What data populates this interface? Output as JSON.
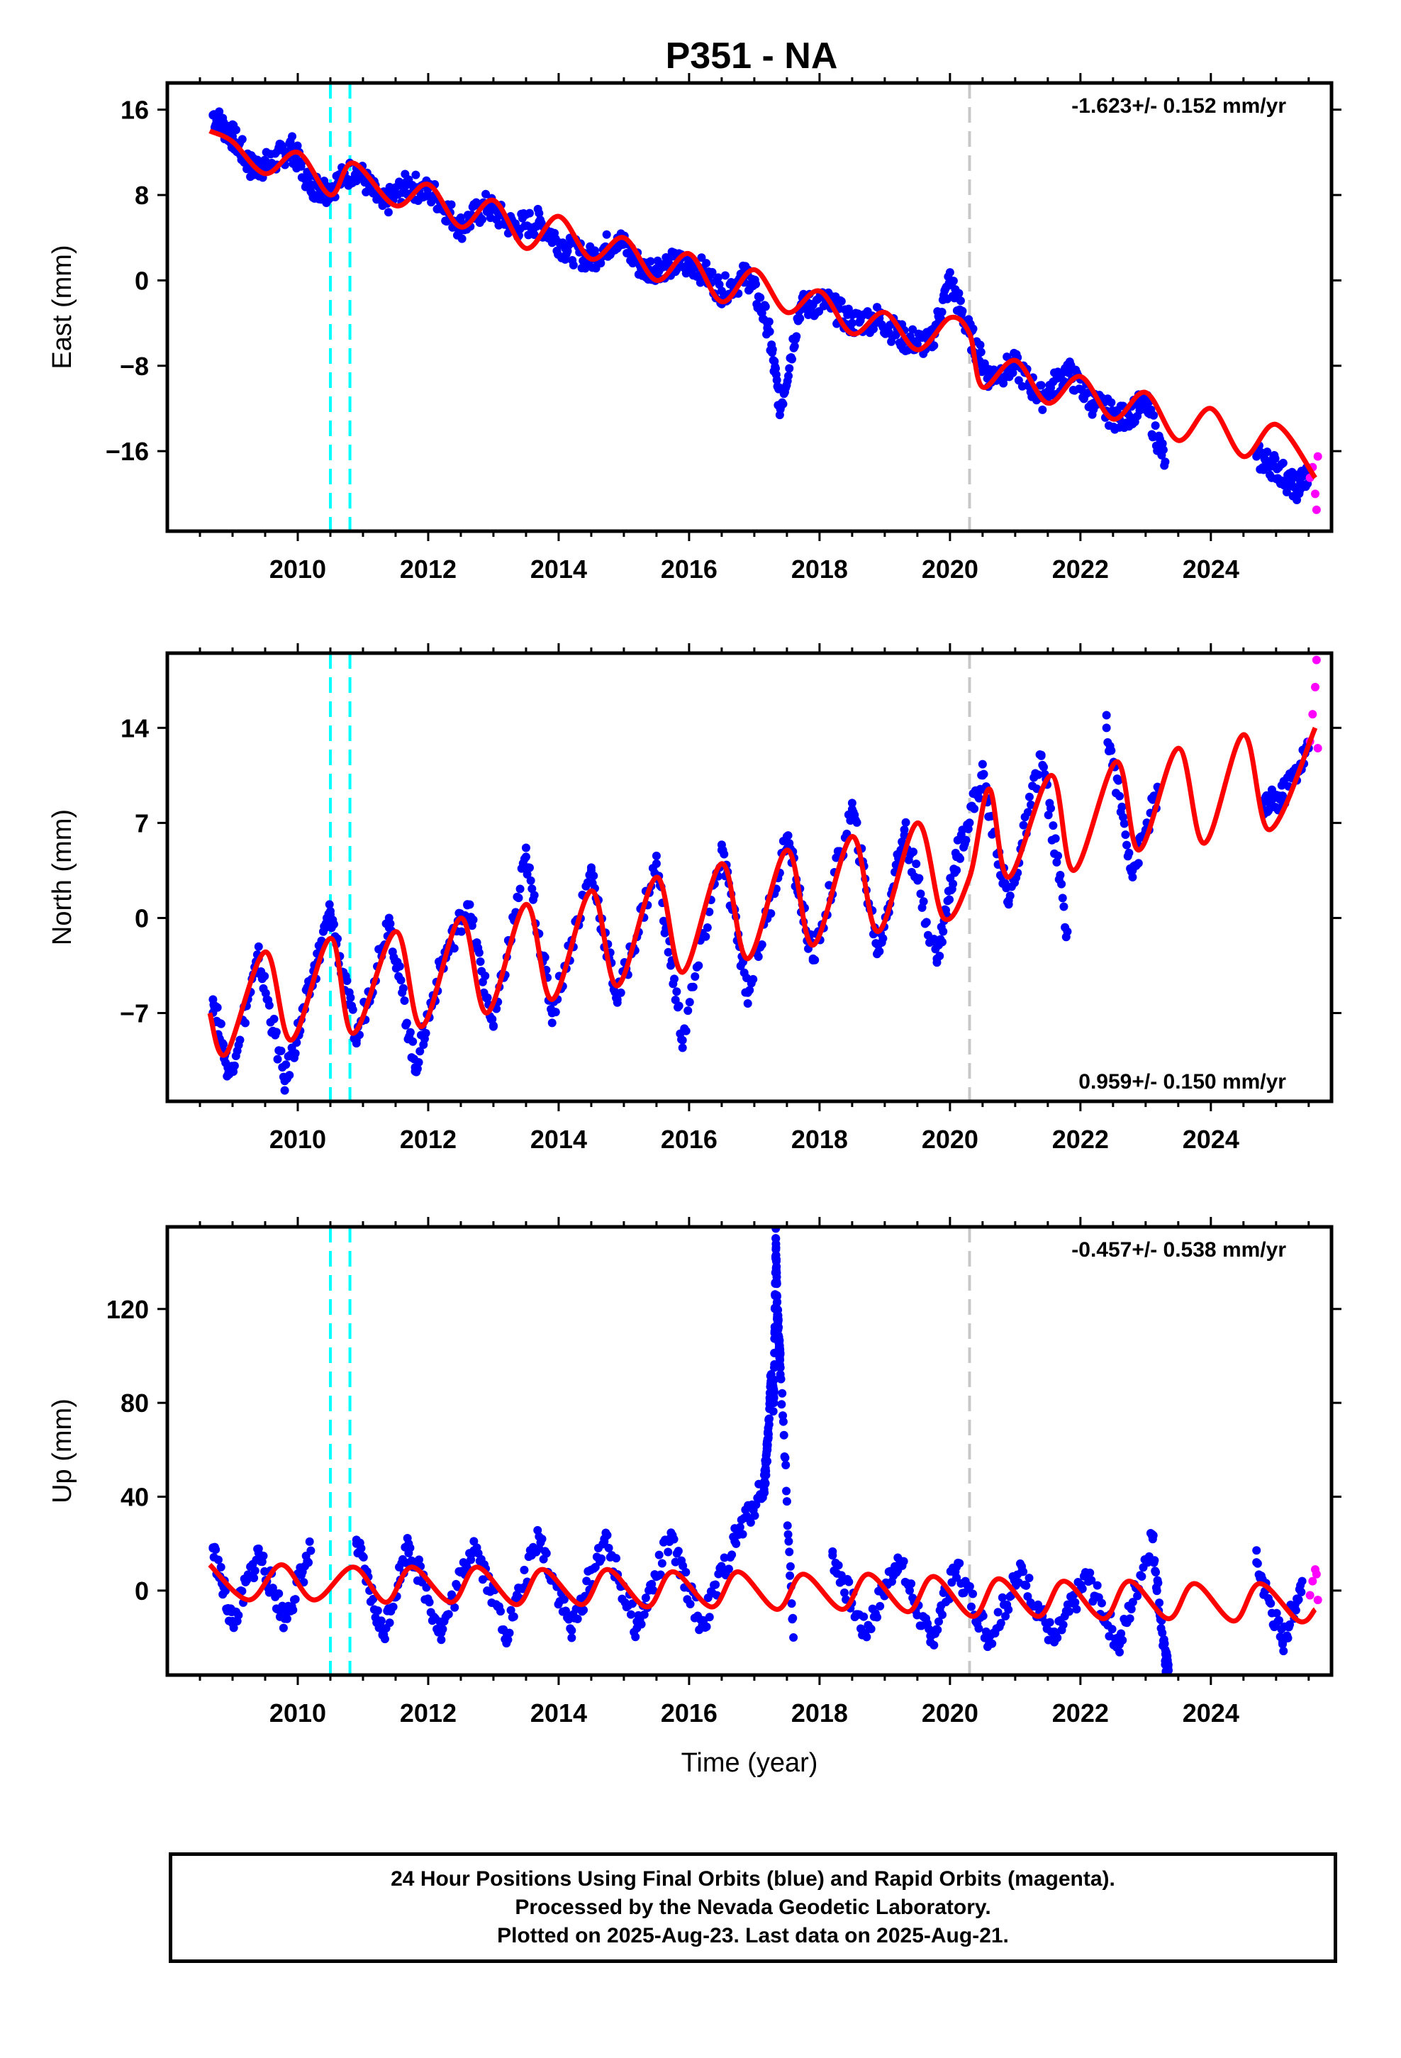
{
  "title": "P351 - NA",
  "colors": {
    "final_orbits": "#0000ff",
    "rapid_orbits": "#ff00ff",
    "model": "#ff0000",
    "equipment_change": "#00ffff",
    "unknown_event": "#c8c8c8",
    "frame": "#000000"
  },
  "footer": {
    "line1": "24 Hour Positions Using Final Orbits (blue) and Rapid Orbits (magenta).",
    "line2": "Processed by the Nevada Geodetic Laboratory.",
    "line3": "Plotted on 2025-Aug-23. Last data on 2025-Aug-21."
  },
  "chart_data": [
    {
      "type": "scatter",
      "component": "east",
      "ylabel": "East (mm)",
      "xlim": [
        2008.0,
        2025.85
      ],
      "ylim": [
        -23.5,
        18.5
      ],
      "x_ticks": [
        2010,
        2012,
        2014,
        2016,
        2018,
        2020,
        2022,
        2024
      ],
      "x_tick_labels": [
        "2010",
        "2012",
        "2014",
        "2016",
        "2018",
        "2020",
        "2022",
        "2024"
      ],
      "y_ticks": [
        16,
        8,
        0,
        -8,
        -16
      ],
      "y_tick_labels": [
        "16",
        "8",
        "0",
        "−8",
        "−16"
      ],
      "rate_text": "-1.623+/- 0.152 mm/yr",
      "rate_position": "top-right",
      "equipment_changes": [
        2010.5,
        2010.8
      ],
      "unknown_events": [
        2020.3
      ],
      "model": {
        "x": [
          2008.65,
          2009.0,
          2009.5,
          2010.0,
          2010.5,
          2010.85,
          2011.5,
          2012.0,
          2012.5,
          2013.0,
          2013.5,
          2014.0,
          2014.5,
          2015.0,
          2015.5,
          2016.0,
          2016.5,
          2017.0,
          2017.5,
          2018.0,
          2018.5,
          2019.0,
          2019.5,
          2020.0,
          2020.3,
          2020.5,
          2021.0,
          2021.5,
          2022.0,
          2022.5,
          2023.0,
          2023.5,
          2024.0,
          2024.5,
          2025.0,
          2025.6
        ],
        "y": [
          14.0,
          13.0,
          10.0,
          12.0,
          8.0,
          11.0,
          7.0,
          9.0,
          5.0,
          7.5,
          3.0,
          6.0,
          2.0,
          4.0,
          0.0,
          2.5,
          -2.0,
          1.0,
          -3.0,
          -1.0,
          -5.0,
          -3.0,
          -6.5,
          -3.5,
          -5.0,
          -10.0,
          -7.5,
          -11.5,
          -9.0,
          -13.0,
          -10.5,
          -15.0,
          -12.0,
          -16.5,
          -13.5,
          -18.5
        ]
      },
      "final_orbits": {
        "x": [
          2008.7,
          2009.0,
          2009.3,
          2009.6,
          2009.9,
          2010.2,
          2010.45,
          2010.9,
          2011.3,
          2011.7,
          2012.1,
          2012.5,
          2012.9,
          2013.3,
          2013.7,
          2014.1,
          2014.5,
          2014.9,
          2015.3,
          2015.7,
          2016.1,
          2016.5,
          2016.9,
          2017.2,
          2017.4,
          2017.7,
          2018.1,
          2018.5,
          2018.9,
          2019.3,
          2019.7,
          2020.0,
          2020.3,
          2020.6,
          2021.0,
          2021.4,
          2021.8,
          2022.2,
          2022.6,
          2023.0,
          2023.3,
          2024.7,
          2025.0,
          2025.3,
          2025.5
        ],
        "y": [
          15.5,
          13.5,
          10.5,
          11.0,
          12.5,
          9.0,
          8.5,
          10.5,
          7.0,
          9.0,
          8.0,
          5.0,
          7.0,
          5.0,
          5.5,
          3.0,
          2.0,
          4.0,
          1.0,
          1.5,
          1.5,
          -1.0,
          0.5,
          -4.0,
          -12.0,
          -2.5,
          -2.0,
          -4.0,
          -3.5,
          -5.5,
          -6.0,
          0.0,
          -5.0,
          -9.0,
          -8.0,
          -11.0,
          -8.5,
          -11.5,
          -13.0,
          -11.5,
          -17.0,
          -16.5,
          -17.5,
          -19.5,
          -18.0
        ]
      },
      "rapid_orbits": {
        "x": [
          2025.52,
          2025.56,
          2025.6,
          2025.62,
          2025.64
        ],
        "y": [
          -18.5,
          -17.5,
          -20.0,
          -21.5,
          -16.5
        ]
      }
    },
    {
      "type": "scatter",
      "component": "north",
      "ylabel": "North (mm)",
      "xlim": [
        2008.0,
        2025.85
      ],
      "ylim": [
        -13.5,
        19.5
      ],
      "x_ticks": [
        2010,
        2012,
        2014,
        2016,
        2018,
        2020,
        2022,
        2024
      ],
      "x_tick_labels": [
        "2010",
        "2012",
        "2014",
        "2016",
        "2018",
        "2020",
        "2022",
        "2024"
      ],
      "y_ticks": [
        14,
        7,
        0,
        -7
      ],
      "y_tick_labels": [
        "14",
        "7",
        "0",
        "−7"
      ],
      "rate_text": "0.959+/- 0.150 mm/yr",
      "rate_position": "bottom-right",
      "equipment_changes": [
        2010.5,
        2010.8
      ],
      "unknown_events": [
        2020.3
      ],
      "model": {
        "x": [
          2008.65,
          2008.9,
          2009.5,
          2009.9,
          2010.5,
          2010.85,
          2011.5,
          2011.9,
          2012.5,
          2012.9,
          2013.5,
          2013.9,
          2014.5,
          2014.9,
          2015.5,
          2015.9,
          2016.5,
          2016.9,
          2017.5,
          2017.9,
          2018.5,
          2018.9,
          2019.5,
          2019.9,
          2020.3,
          2020.6,
          2020.9,
          2021.55,
          2021.9,
          2022.55,
          2022.9,
          2023.5,
          2023.9,
          2024.5,
          2024.9,
          2025.6
        ],
        "y": [
          -7.0,
          -10.0,
          -2.5,
          -9.0,
          -1.5,
          -8.5,
          -1.0,
          -8.0,
          0.0,
          -7.0,
          1.0,
          -6.0,
          2.0,
          -5.0,
          3.0,
          -4.0,
          4.0,
          -3.0,
          5.0,
          -2.0,
          6.0,
          -1.0,
          7.0,
          0.0,
          3.0,
          9.5,
          3.0,
          10.5,
          3.5,
          11.5,
          5.0,
          12.5,
          5.5,
          13.5,
          6.5,
          14.0
        ]
      },
      "final_orbits": {
        "x": [
          2008.7,
          2008.95,
          2009.4,
          2009.8,
          2010.2,
          2010.5,
          2010.9,
          2011.4,
          2011.8,
          2012.2,
          2012.6,
          2013.0,
          2013.5,
          2013.9,
          2014.5,
          2014.9,
          2015.5,
          2015.9,
          2016.5,
          2016.9,
          2017.5,
          2017.9,
          2018.5,
          2018.9,
          2019.3,
          2019.8,
          2020.1,
          2020.5,
          2020.9,
          2021.4,
          2021.8,
          2022.4,
          2022.8,
          2023.2,
          2024.8,
          2025.1,
          2025.5
        ],
        "y": [
          -6.0,
          -11.5,
          -3.0,
          -12.0,
          -5.0,
          0.5,
          -9.0,
          0.0,
          -11.0,
          -3.5,
          1.0,
          -8.0,
          4.5,
          -7.0,
          3.5,
          -6.0,
          4.0,
          -9.0,
          5.0,
          -5.5,
          6.0,
          -3.0,
          8.0,
          -2.5,
          6.5,
          -3.0,
          4.5,
          10.5,
          1.0,
          12.0,
          -1.0,
          14.0,
          3.5,
          9.5,
          8.0,
          9.0,
          12.5
        ]
      },
      "rapid_orbits": {
        "x": [
          2025.52,
          2025.56,
          2025.6,
          2025.62,
          2025.64
        ],
        "y": [
          13.0,
          15.0,
          17.0,
          19.0,
          12.5
        ]
      }
    },
    {
      "type": "scatter",
      "component": "up",
      "ylabel": "Up (mm)",
      "xlim": [
        2008.0,
        2025.85
      ],
      "ylim": [
        -36,
        155
      ],
      "x_ticks": [
        2010,
        2012,
        2014,
        2016,
        2018,
        2020,
        2022,
        2024
      ],
      "x_tick_labels": [
        "2010",
        "2012",
        "2014",
        "2016",
        "2018",
        "2020",
        "2022",
        "2024"
      ],
      "y_ticks": [
        120,
        80,
        40,
        0
      ],
      "y_tick_labels": [
        "120",
        "80",
        "40",
        "0"
      ],
      "rate_text": "-0.457+/- 0.538 mm/yr",
      "rate_position": "top-right",
      "xlabel": "Time (year)",
      "equipment_changes": [
        2010.5,
        2010.8
      ],
      "unknown_events": [
        2020.3
      ],
      "model": {
        "x": [
          2008.65,
          2009.25,
          2009.75,
          2010.25,
          2010.85,
          2011.35,
          2011.75,
          2012.35,
          2012.75,
          2013.35,
          2013.75,
          2014.35,
          2014.75,
          2015.35,
          2015.75,
          2016.35,
          2016.75,
          2017.35,
          2017.75,
          2018.35,
          2018.75,
          2019.35,
          2019.75,
          2020.35,
          2020.75,
          2021.35,
          2021.75,
          2022.35,
          2022.75,
          2023.35,
          2023.75,
          2024.35,
          2024.75,
          2025.35,
          2025.6
        ],
        "y": [
          11,
          -4,
          11,
          -4,
          10,
          -5,
          10,
          -5,
          10,
          -6,
          9,
          -6,
          9,
          -7,
          8,
          -7,
          8,
          -8,
          7,
          -8,
          7,
          -9,
          6,
          -11,
          5,
          -11,
          4,
          -12,
          4,
          -12,
          3,
          -13,
          3,
          -13,
          -8
        ]
      },
      "final_orbits": {
        "x": [
          2008.7,
          2009.0,
          2009.4,
          2009.8,
          2010.2,
          2010.9,
          2011.3,
          2011.7,
          2012.2,
          2012.7,
          2013.2,
          2013.7,
          2014.2,
          2014.7,
          2015.2,
          2015.7,
          2016.2,
          2016.7,
          2017.15,
          2017.2,
          2017.25,
          2017.3,
          2017.33,
          2017.35,
          2017.38,
          2017.4,
          2017.6,
          2018.2,
          2018.7,
          2019.2,
          2019.7,
          2020.1,
          2020.6,
          2021.1,
          2021.6,
          2022.1,
          2022.6,
          2023.1,
          2023.3,
          2023.35,
          2024.7,
          2025.1,
          2025.4
        ],
        "y": [
          18,
          -14,
          16,
          -12,
          17,
          20,
          -19,
          20,
          -18,
          21,
          -18,
          23,
          -17,
          22,
          -16,
          22,
          -15,
          21,
          45,
          60,
          88,
          80,
          150,
          120,
          104,
          95,
          -20,
          15,
          -18,
          14,
          -22,
          10,
          -20,
          8,
          -22,
          6,
          -23,
          24,
          -30,
          -34,
          12,
          -22,
          4
        ]
      },
      "rapid_orbits": {
        "x": [
          2025.52,
          2025.56,
          2025.6,
          2025.62,
          2025.64
        ],
        "y": [
          -2,
          4,
          9,
          7,
          -4
        ]
      }
    }
  ]
}
